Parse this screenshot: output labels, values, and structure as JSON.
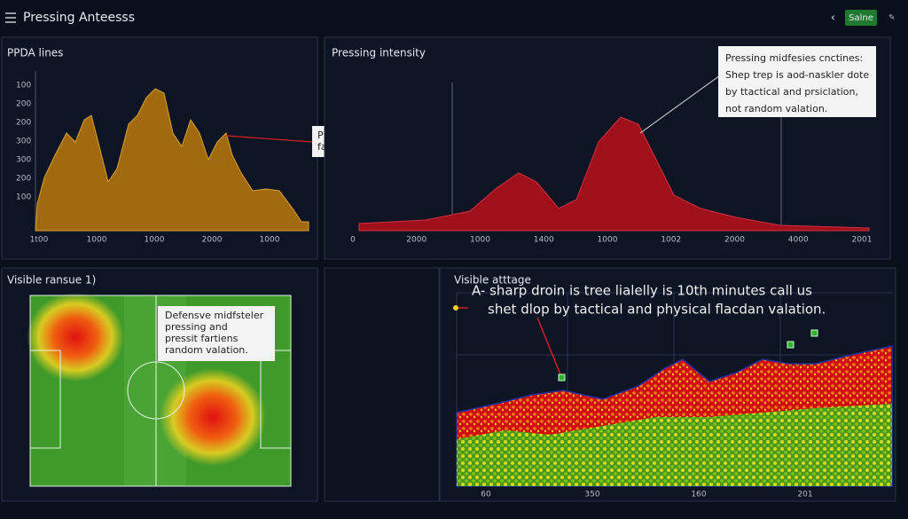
{
  "header": {
    "title": "Pressing Anteesss",
    "button": "Salne"
  },
  "panels": [
    {
      "title": "PPDA lines",
      "y_labels": [
        "100",
        "200",
        "200",
        "300",
        "300",
        "200",
        "100"
      ],
      "x_labels": [
        "1t00",
        "1000",
        "1000",
        "2000",
        "1000"
      ],
      "annotation": [
        "Pressing",
        "fattures"
      ]
    },
    {
      "title": "Pressing intensity",
      "x_labels": [
        "0",
        "2000",
        "1000",
        "1400",
        "1000",
        "1002",
        "2000",
        "4000",
        "2001"
      ],
      "annotation": [
        "Pressing midfesies cnctines:",
        "Shep trep is aod-naskler dote",
        "by ttactical and prsiclation,",
        "not random valation."
      ]
    },
    {
      "title": "Visible ransue 1)",
      "annotation": [
        "Defensve midfsteler",
        "pressing and",
        "pressit fartiens",
        "random valation."
      ]
    },
    {
      "title": "Visible atttage",
      "annotation": [
        "A- sharp droin is tree lialelly is 10th minutes call us",
        "shet dlop by tactical and physical flacdan valation."
      ],
      "x_labels": [
        "60",
        "350",
        "160",
        "201"
      ]
    }
  ]
}
